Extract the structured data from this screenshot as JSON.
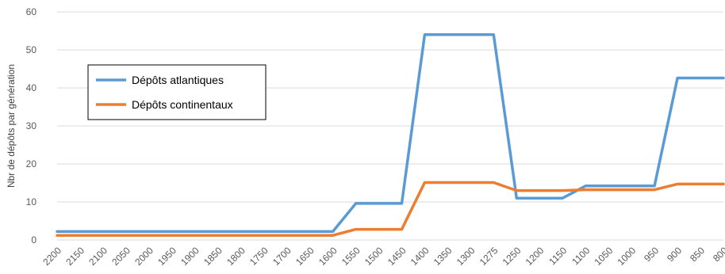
{
  "chart_data": {
    "type": "line",
    "title": "",
    "xlabel": "",
    "ylabel": "Nbr de dépôts par génération",
    "ylim": [
      0,
      60
    ],
    "yticks": [
      0,
      10,
      20,
      30,
      40,
      50,
      60
    ],
    "grid": true,
    "legend_position": "left",
    "categories": [
      "2200",
      "2150",
      "2100",
      "2050",
      "2000",
      "1950",
      "1900",
      "1850",
      "1800",
      "1750",
      "1700",
      "1650",
      "1600",
      "1550",
      "1500",
      "1450",
      "1400",
      "1350",
      "1300",
      "1275",
      "1250",
      "1200",
      "1150",
      "1100",
      "1050",
      "1000",
      "950",
      "900",
      "850",
      "800"
    ],
    "series": [
      {
        "name": "Dépôts atlantiques",
        "color": "#5B9BD5",
        "values": [
          2.2,
          2.2,
          2.2,
          2.2,
          2.2,
          2.2,
          2.2,
          2.2,
          2.2,
          2.2,
          2.2,
          2.2,
          2.2,
          9.6,
          9.6,
          9.6,
          54,
          54,
          54,
          54,
          11,
          11,
          11,
          14.2,
          14.2,
          14.2,
          14.2,
          42.6,
          42.6,
          42.6
        ]
      },
      {
        "name": "Dépôts continentaux",
        "color": "#ED7D31",
        "values": [
          1.2,
          1.2,
          1.2,
          1.2,
          1.2,
          1.2,
          1.2,
          1.2,
          1.2,
          1.2,
          1.2,
          1.2,
          1.2,
          2.8,
          2.8,
          2.8,
          15.1,
          15.1,
          15.1,
          15.1,
          13,
          13,
          13,
          13.2,
          13.2,
          13.2,
          13.2,
          14.7,
          14.7,
          14.7
        ]
      }
    ]
  }
}
